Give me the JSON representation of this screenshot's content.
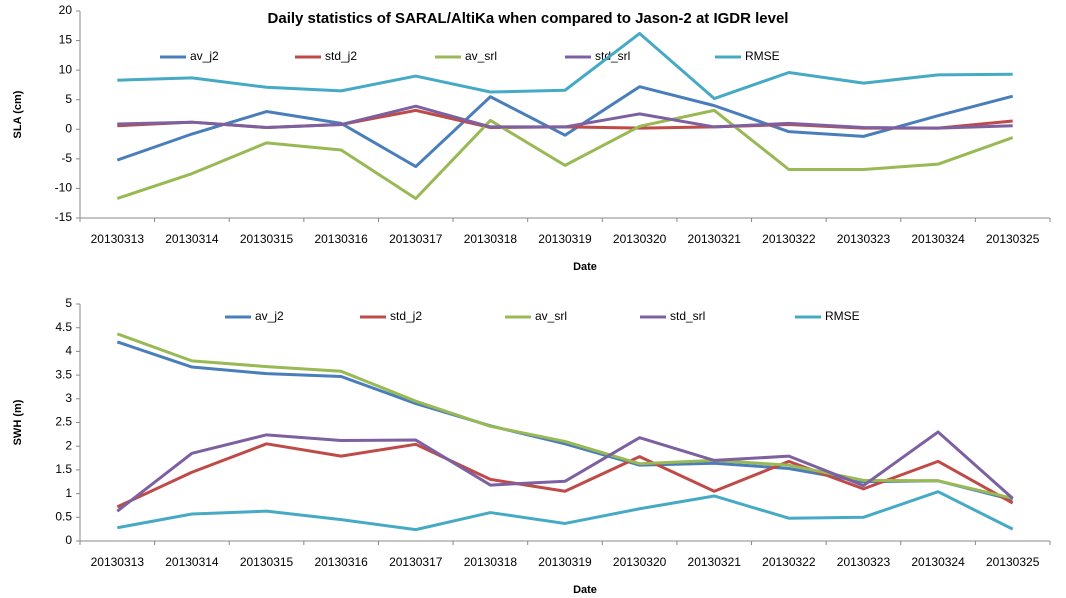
{
  "chart_data": [
    {
      "type": "line",
      "title": "Daily statistics of SARAL/AltiKa when compared to Jason-2 at IGDR  level",
      "y_label": "SLA (cm)",
      "x_label": "Date",
      "categories": [
        "20130313",
        "20130314",
        "20130315",
        "20130316",
        "20130317",
        "20130318",
        "20130319",
        "20130320",
        "20130321",
        "20130322",
        "20130323",
        "20130324",
        "20130325"
      ],
      "ylim": [
        -15,
        20
      ],
      "yticks": [
        -15,
        -10,
        -5,
        0,
        5,
        10,
        15,
        20
      ],
      "grid": false,
      "legend": "top",
      "series": [
        {
          "name": "av_j2",
          "color": "#4a7ebb",
          "values": [
            -5.2,
            -0.8,
            3.0,
            1.0,
            -6.3,
            5.5,
            -1.0,
            7.2,
            4.0,
            -0.4,
            -1.2,
            2.3,
            5.6
          ]
        },
        {
          "name": "std_j2",
          "color": "#be4b48",
          "values": [
            0.6,
            1.2,
            0.3,
            0.8,
            3.2,
            0.3,
            0.4,
            0.2,
            0.4,
            0.8,
            0.2,
            0.2,
            1.4
          ]
        },
        {
          "name": "av_srl",
          "color": "#98b954",
          "values": [
            -11.7,
            -7.5,
            -2.3,
            -3.5,
            -11.7,
            1.5,
            -6.1,
            0.5,
            3.2,
            -6.8,
            -6.8,
            -5.9,
            -1.4
          ]
        },
        {
          "name": "std_srl",
          "color": "#7d60a0",
          "values": [
            0.9,
            1.2,
            0.3,
            0.8,
            3.9,
            0.4,
            0.4,
            2.6,
            0.4,
            1.0,
            0.3,
            0.2,
            0.6
          ]
        },
        {
          "name": "RMSE",
          "color": "#46aac5",
          "values": [
            8.3,
            8.7,
            7.1,
            6.5,
            9.0,
            6.3,
            6.6,
            16.2,
            5.2,
            9.6,
            7.8,
            9.2,
            9.3
          ]
        }
      ]
    },
    {
      "type": "line",
      "y_label": "SWH (m)",
      "x_label": "Date",
      "categories": [
        "20130313",
        "20130314",
        "20130315",
        "20130316",
        "20130317",
        "20130318",
        "20130319",
        "20130320",
        "20130321",
        "20130322",
        "20130323",
        "20130324",
        "20130325"
      ],
      "ylim": [
        0,
        5
      ],
      "yticks": [
        0,
        0.5,
        1,
        1.5,
        2,
        2.5,
        3,
        3.5,
        4,
        4.5,
        5
      ],
      "grid": false,
      "legend": "top",
      "series": [
        {
          "name": "av_j2",
          "color": "#4a7ebb",
          "values": [
            4.2,
            3.67,
            3.53,
            3.47,
            2.9,
            2.43,
            2.05,
            1.6,
            1.64,
            1.53,
            1.25,
            1.27,
            0.87
          ]
        },
        {
          "name": "std_j2",
          "color": "#be4b48",
          "values": [
            0.72,
            1.45,
            2.05,
            1.79,
            2.04,
            1.3,
            1.05,
            1.78,
            1.05,
            1.68,
            1.1,
            1.68,
            0.8
          ]
        },
        {
          "name": "av_srl",
          "color": "#98b954",
          "values": [
            4.37,
            3.8,
            3.68,
            3.58,
            2.95,
            2.42,
            2.1,
            1.63,
            1.7,
            1.6,
            1.28,
            1.27,
            0.9
          ]
        },
        {
          "name": "std_srl",
          "color": "#7d60a0",
          "values": [
            0.63,
            1.85,
            2.24,
            2.12,
            2.13,
            1.18,
            1.26,
            2.18,
            1.7,
            1.79,
            1.17,
            2.3,
            0.9
          ]
        },
        {
          "name": "RMSE",
          "color": "#46aac5",
          "values": [
            0.28,
            0.57,
            0.63,
            0.45,
            0.24,
            0.6,
            0.37,
            0.68,
            0.95,
            0.48,
            0.5,
            1.04,
            0.25
          ]
        }
      ]
    }
  ]
}
